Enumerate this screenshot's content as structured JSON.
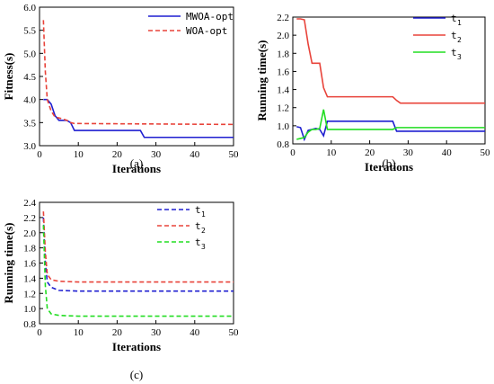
{
  "chart_data": [
    {
      "panel": "(a)",
      "type": "line",
      "xlabel": "Iterations",
      "ylabel": "Fitness(s)",
      "xlim": [
        0,
        50
      ],
      "ylim": [
        3.0,
        6.0
      ],
      "xticks": [
        "0",
        "10",
        "20",
        "30",
        "40",
        "50"
      ],
      "yticks": [
        "3.0",
        "3.5",
        "4.0",
        "4.5",
        "5.0",
        "5.5",
        "6.0"
      ],
      "legend_position": "top-right",
      "series": [
        {
          "name": "MWOA-opt",
          "color": "#1f1fd0",
          "dash": "solid",
          "x": [
            1,
            2,
            3,
            4,
            5,
            6,
            7,
            8,
            9,
            10,
            26,
            27,
            50
          ],
          "y": [
            4.0,
            4.0,
            3.9,
            3.65,
            3.55,
            3.55,
            3.55,
            3.5,
            3.33,
            3.33,
            3.33,
            3.18,
            3.18
          ]
        },
        {
          "name": "WOA-opt",
          "color": "#e8433a",
          "dash": "dashed",
          "x": [
            1,
            1.5,
            2,
            3,
            4,
            5,
            6,
            7,
            8,
            9,
            10,
            50
          ],
          "y": [
            5.72,
            4.6,
            4.0,
            3.75,
            3.62,
            3.6,
            3.58,
            3.55,
            3.5,
            3.48,
            3.48,
            3.46
          ]
        }
      ]
    },
    {
      "panel": "(b)",
      "type": "line",
      "xlabel": "Iterations",
      "ylabel": "Running time(s)",
      "xlim": [
        0,
        50
      ],
      "ylim": [
        0.8,
        2.2
      ],
      "xticks": [
        "0",
        "10",
        "20",
        "30",
        "40",
        "50"
      ],
      "yticks": [
        "0.8",
        "1.0",
        "1.2",
        "1.4",
        "1.6",
        "1.8",
        "2.0",
        "2.2"
      ],
      "legend_position": "top-right",
      "series": [
        {
          "name": "t1",
          "label": "t",
          "sub": "1",
          "color": "#1f1fd0",
          "dash": "solid",
          "x": [
            1,
            2,
            3,
            4,
            5,
            6,
            7,
            8,
            9,
            26,
            27,
            50
          ],
          "y": [
            0.99,
            0.98,
            0.85,
            0.95,
            0.96,
            0.97,
            0.96,
            0.89,
            1.05,
            1.05,
            0.94,
            0.94
          ]
        },
        {
          "name": "t2",
          "label": "t",
          "sub": "2",
          "color": "#e8433a",
          "dash": "solid",
          "x": [
            1,
            2,
            3,
            4,
            5,
            6,
            7,
            8,
            9,
            26,
            27,
            28,
            50
          ],
          "y": [
            2.18,
            2.18,
            2.17,
            1.9,
            1.69,
            1.69,
            1.69,
            1.42,
            1.32,
            1.32,
            1.28,
            1.25,
            1.25
          ]
        },
        {
          "name": "t3",
          "label": "t",
          "sub": "3",
          "color": "#22dd22",
          "dash": "solid",
          "x": [
            1,
            2,
            3,
            4,
            5,
            6,
            7,
            8,
            9,
            26,
            27,
            50
          ],
          "y": [
            0.85,
            0.86,
            0.87,
            0.93,
            0.96,
            0.96,
            0.97,
            1.18,
            0.96,
            0.96,
            0.98,
            0.98
          ]
        }
      ]
    },
    {
      "panel": "(c)",
      "type": "line",
      "xlabel": "Iterations",
      "ylabel": "Running time(s)",
      "xlim": [
        0,
        50
      ],
      "ylim": [
        0.8,
        2.4
      ],
      "xticks": [
        "0",
        "10",
        "20",
        "30",
        "40",
        "50"
      ],
      "yticks": [
        "0.8",
        "1.0",
        "1.2",
        "1.4",
        "1.6",
        "1.8",
        "2.0",
        "2.2",
        "2.4"
      ],
      "legend_position": "top-right",
      "series": [
        {
          "name": "t1",
          "label": "t",
          "sub": "1",
          "color": "#1f1fd0",
          "dash": "dashed",
          "x": [
            1,
            1.5,
            2,
            3,
            5,
            10,
            50
          ],
          "y": [
            2.2,
            1.6,
            1.35,
            1.28,
            1.24,
            1.23,
            1.23
          ]
        },
        {
          "name": "t2",
          "label": "t",
          "sub": "2",
          "color": "#e8433a",
          "dash": "dashed",
          "x": [
            1,
            1.5,
            2,
            3,
            5,
            10,
            50
          ],
          "y": [
            2.28,
            1.75,
            1.45,
            1.38,
            1.36,
            1.35,
            1.35
          ]
        },
        {
          "name": "t3",
          "label": "t",
          "sub": "3",
          "color": "#22dd22",
          "dash": "dashed",
          "x": [
            1,
            1.5,
            2,
            3,
            5,
            10,
            50
          ],
          "y": [
            2.1,
            1.3,
            1.0,
            0.93,
            0.91,
            0.9,
            0.9
          ]
        }
      ]
    }
  ]
}
